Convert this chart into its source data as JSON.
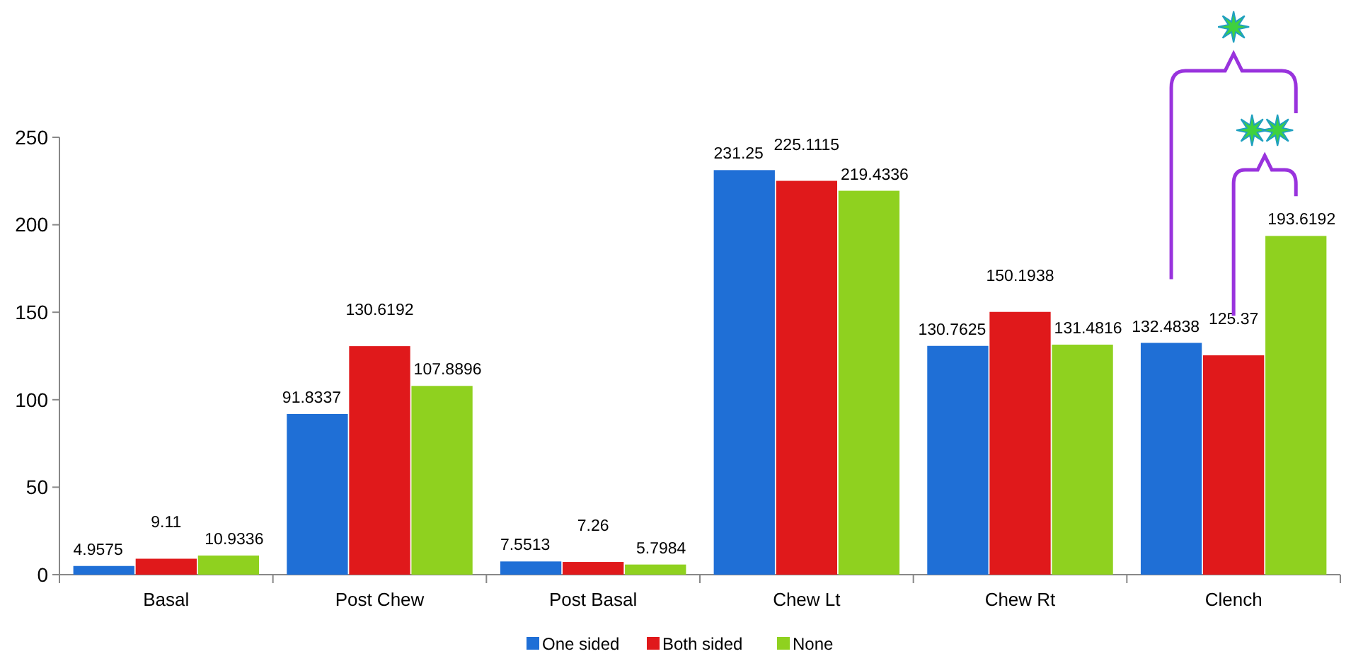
{
  "chart_data": {
    "type": "bar",
    "categories": [
      "Basal",
      "Post Chew",
      "Post Basal",
      "Chew Lt",
      "Chew Rt",
      "Clench"
    ],
    "series": [
      {
        "name": "One sided",
        "color": "#1f6fd6",
        "values": [
          4.9575,
          91.8337,
          7.5513,
          231.25,
          130.7625,
          132.4838
        ]
      },
      {
        "name": "Both sided",
        "color": "#e0191b",
        "values": [
          9.11,
          130.6192,
          7.26,
          225.1115,
          150.1938,
          125.37
        ]
      },
      {
        "name": "None",
        "color": "#8fd11f",
        "values": [
          10.9336,
          107.8896,
          5.7984,
          219.4336,
          131.4816,
          193.6192
        ]
      }
    ],
    "ylim": [
      0,
      250
    ],
    "yticks": [
      0,
      50,
      100,
      150,
      200,
      250
    ],
    "grid": false,
    "legend": "bottom",
    "data_labels": true
  }
}
